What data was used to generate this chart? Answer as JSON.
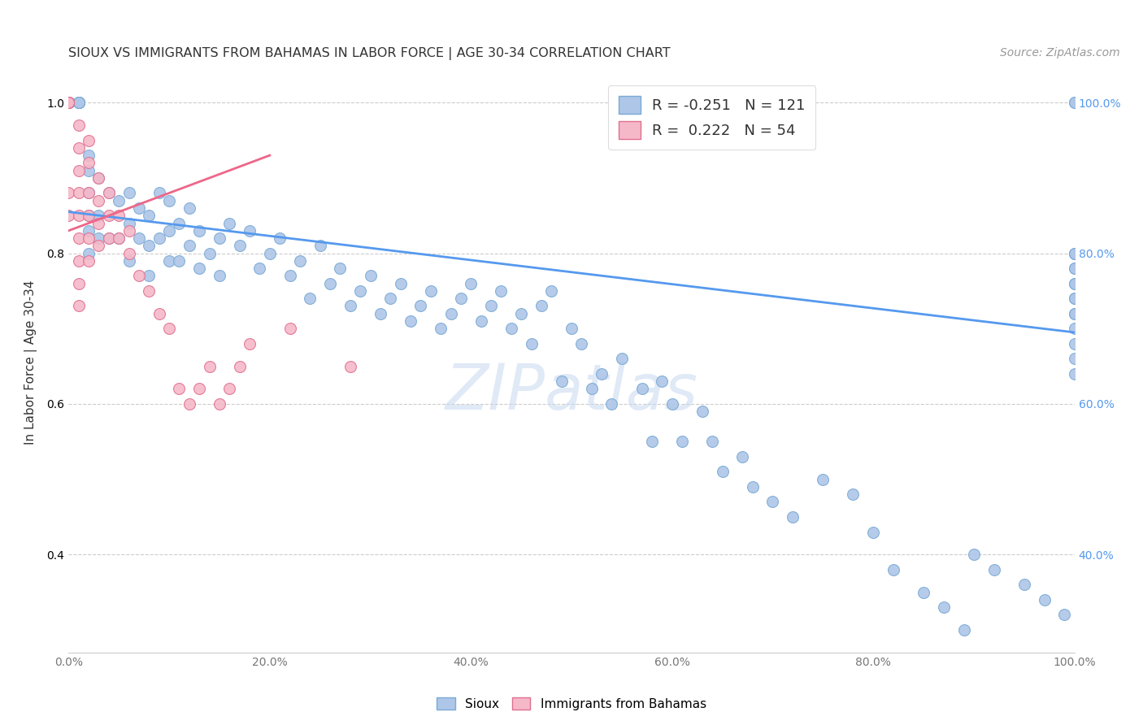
{
  "title": "SIOUX VS IMMIGRANTS FROM BAHAMAS IN LABOR FORCE | AGE 30-34 CORRELATION CHART",
  "source": "Source: ZipAtlas.com",
  "ylabel": "In Labor Force | Age 30-34",
  "xlim": [
    0.0,
    1.0
  ],
  "ylim": [
    0.27,
    1.04
  ],
  "y_ticks": [
    0.4,
    0.6,
    0.8,
    1.0
  ],
  "x_ticks": [
    0.0,
    0.2,
    0.4,
    0.6,
    0.8,
    1.0
  ],
  "grid_color": "#cccccc",
  "sioux_color": "#aec6e8",
  "sioux_edge_color": "#7aaad4",
  "bahamas_color": "#f5b8c8",
  "bahamas_edge_color": "#e07090",
  "trend_sioux_color": "#5599ee",
  "trend_bahamas_color": "#ee6688",
  "watermark": "ZIPatlas",
  "legend_R_sioux": "-0.251",
  "legend_N_sioux": "121",
  "legend_R_bahamas": "0.222",
  "legend_N_bahamas": "54",
  "sioux_trend_x0": 0.0,
  "sioux_trend_y0": 0.855,
  "sioux_trend_x1": 1.0,
  "sioux_trend_y1": 0.695,
  "bahamas_trend_x0": 0.0,
  "bahamas_trend_y0": 0.83,
  "bahamas_trend_x1": 0.2,
  "bahamas_trend_y1": 0.93,
  "sioux_x": [
    0.01,
    0.01,
    0.01,
    0.01,
    0.01,
    0.02,
    0.02,
    0.02,
    0.02,
    0.02,
    0.02,
    0.03,
    0.03,
    0.03,
    0.04,
    0.04,
    0.05,
    0.05,
    0.06,
    0.06,
    0.06,
    0.07,
    0.07,
    0.08,
    0.08,
    0.08,
    0.09,
    0.09,
    0.1,
    0.1,
    0.1,
    0.11,
    0.11,
    0.12,
    0.12,
    0.13,
    0.13,
    0.14,
    0.15,
    0.15,
    0.16,
    0.17,
    0.18,
    0.19,
    0.2,
    0.21,
    0.22,
    0.23,
    0.24,
    0.25,
    0.26,
    0.27,
    0.28,
    0.29,
    0.3,
    0.31,
    0.32,
    0.33,
    0.34,
    0.35,
    0.36,
    0.37,
    0.38,
    0.39,
    0.4,
    0.41,
    0.42,
    0.43,
    0.44,
    0.45,
    0.46,
    0.47,
    0.48,
    0.49,
    0.5,
    0.51,
    0.52,
    0.53,
    0.54,
    0.55,
    0.57,
    0.58,
    0.59,
    0.6,
    0.61,
    0.63,
    0.64,
    0.65,
    0.67,
    0.68,
    0.7,
    0.72,
    0.75,
    0.78,
    0.8,
    0.82,
    0.85,
    0.87,
    0.89,
    0.9,
    0.92,
    0.95,
    0.97,
    0.99,
    1.0,
    1.0,
    1.0,
    1.0,
    1.0,
    1.0,
    1.0,
    1.0,
    1.0,
    1.0,
    1.0,
    1.0,
    1.0,
    1.0,
    1.0,
    1.0,
    1.0
  ],
  "sioux_y": [
    1.0,
    1.0,
    1.0,
    1.0,
    1.0,
    0.93,
    0.91,
    0.88,
    0.85,
    0.83,
    0.8,
    0.9,
    0.85,
    0.82,
    0.88,
    0.82,
    0.87,
    0.82,
    0.88,
    0.84,
    0.79,
    0.86,
    0.82,
    0.85,
    0.81,
    0.77,
    0.88,
    0.82,
    0.87,
    0.83,
    0.79,
    0.84,
    0.79,
    0.86,
    0.81,
    0.83,
    0.78,
    0.8,
    0.82,
    0.77,
    0.84,
    0.81,
    0.83,
    0.78,
    0.8,
    0.82,
    0.77,
    0.79,
    0.74,
    0.81,
    0.76,
    0.78,
    0.73,
    0.75,
    0.77,
    0.72,
    0.74,
    0.76,
    0.71,
    0.73,
    0.75,
    0.7,
    0.72,
    0.74,
    0.76,
    0.71,
    0.73,
    0.75,
    0.7,
    0.72,
    0.68,
    0.73,
    0.75,
    0.63,
    0.7,
    0.68,
    0.62,
    0.64,
    0.6,
    0.66,
    0.62,
    0.55,
    0.63,
    0.6,
    0.55,
    0.59,
    0.55,
    0.51,
    0.53,
    0.49,
    0.47,
    0.45,
    0.5,
    0.48,
    0.43,
    0.38,
    0.35,
    0.33,
    0.3,
    0.4,
    0.38,
    0.36,
    0.34,
    0.32,
    1.0,
    1.0,
    0.8,
    0.8,
    0.78,
    0.76,
    0.74,
    0.72,
    0.7,
    0.68,
    0.66,
    0.64,
    0.8,
    0.78,
    0.76,
    0.74,
    0.72
  ],
  "bahamas_x": [
    0.0,
    0.0,
    0.0,
    0.0,
    0.0,
    0.0,
    0.0,
    0.0,
    0.0,
    0.0,
    0.0,
    0.0,
    0.0,
    0.0,
    0.01,
    0.01,
    0.01,
    0.01,
    0.01,
    0.01,
    0.01,
    0.01,
    0.01,
    0.02,
    0.02,
    0.02,
    0.02,
    0.02,
    0.02,
    0.03,
    0.03,
    0.03,
    0.03,
    0.04,
    0.04,
    0.04,
    0.05,
    0.05,
    0.06,
    0.06,
    0.07,
    0.08,
    0.09,
    0.1,
    0.11,
    0.12,
    0.13,
    0.14,
    0.15,
    0.16,
    0.17,
    0.18,
    0.22,
    0.28
  ],
  "bahamas_y": [
    1.0,
    1.0,
    1.0,
    1.0,
    1.0,
    1.0,
    1.0,
    1.0,
    1.0,
    1.0,
    1.0,
    1.0,
    0.88,
    0.85,
    0.97,
    0.94,
    0.91,
    0.88,
    0.85,
    0.82,
    0.79,
    0.76,
    0.73,
    0.95,
    0.92,
    0.88,
    0.85,
    0.82,
    0.79,
    0.9,
    0.87,
    0.84,
    0.81,
    0.88,
    0.85,
    0.82,
    0.85,
    0.82,
    0.83,
    0.8,
    0.77,
    0.75,
    0.72,
    0.7,
    0.62,
    0.6,
    0.62,
    0.65,
    0.6,
    0.62,
    0.65,
    0.68,
    0.7,
    0.65
  ]
}
